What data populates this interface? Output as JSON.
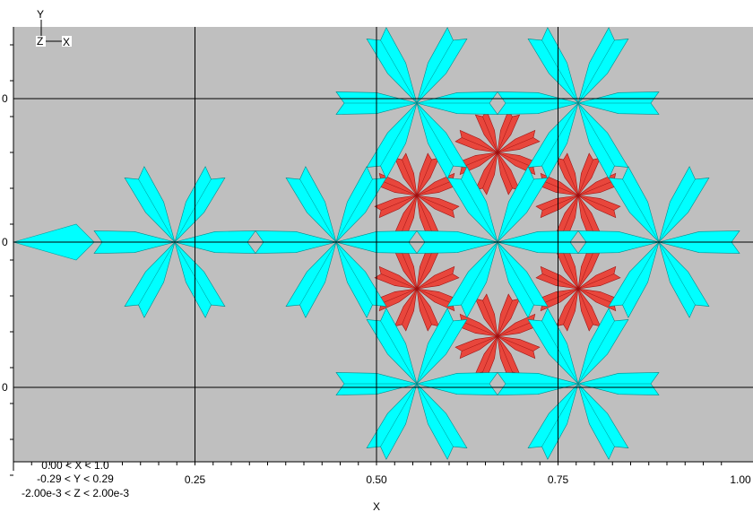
{
  "axes": {
    "x_label": "X",
    "x_ticks": [
      "0.25",
      "0.50",
      "0.75",
      "1.00"
    ],
    "y_ticks": [
      "0",
      "0",
      "0"
    ],
    "triad": {
      "y": "Y",
      "z": "Z",
      "x": "X"
    }
  },
  "ranges": [
    "0.00 < X < 1.0",
    "-0.29 < Y < 0.29",
    "-2.00e-3 < Z < 2.00e-3"
  ]
}
